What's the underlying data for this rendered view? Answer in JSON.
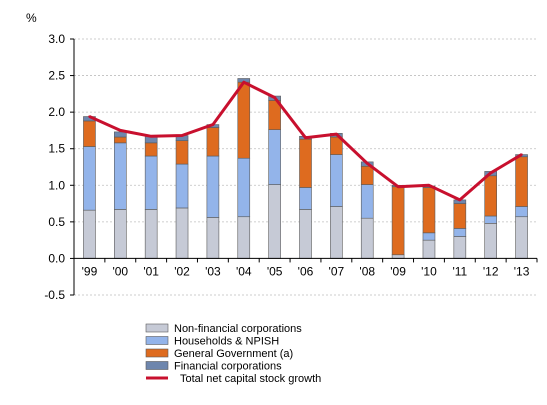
{
  "chart_data": {
    "type": "bar",
    "stacked": true,
    "unit_label": "%",
    "categories": [
      "'99",
      "'00",
      "'01",
      "'02",
      "'03",
      "'04",
      "'05",
      "'06",
      "'07",
      "'08",
      "'09",
      "'10",
      "'11",
      "'12",
      "'13"
    ],
    "ylim": [
      -0.5,
      3.0
    ],
    "yticks": [
      "-0.5",
      "0.0",
      "0.5",
      "1.0",
      "1.5",
      "2.0",
      "2.5",
      "3.0"
    ],
    "grid": true,
    "legend_position": "bottom",
    "series": [
      {
        "name": "Non-financial corporations",
        "color": "#c6cad6",
        "values": [
          0.66,
          0.67,
          0.67,
          0.69,
          0.56,
          0.57,
          1.01,
          0.67,
          0.71,
          0.55,
          0.05,
          0.25,
          0.3,
          0.48,
          0.57
        ]
      },
      {
        "name": "Households & NPISH",
        "color": "#93b4ea",
        "values": [
          0.87,
          0.91,
          0.73,
          0.6,
          0.84,
          0.8,
          0.75,
          0.3,
          0.71,
          0.46,
          0.0,
          0.1,
          0.11,
          0.1,
          0.14
        ]
      },
      {
        "name": "General Government (a)",
        "color": "#de6b1f",
        "values": [
          0.35,
          0.08,
          0.18,
          0.32,
          0.39,
          1.04,
          0.4,
          0.66,
          0.24,
          0.25,
          0.93,
          0.62,
          0.34,
          0.55,
          0.68
        ]
      },
      {
        "name": "Financial corporations",
        "color": "#6e86ad",
        "values": [
          0.06,
          0.07,
          0.09,
          0.07,
          0.04,
          0.05,
          0.06,
          0.04,
          0.05,
          0.06,
          0.02,
          0.02,
          0.05,
          0.06,
          0.03
        ]
      }
    ],
    "line": {
      "name": "Total net capital stock growth",
      "color": "#c8102e",
      "values": [
        1.94,
        1.75,
        1.67,
        1.68,
        1.83,
        2.41,
        2.2,
        1.65,
        1.7,
        1.3,
        0.98,
        1.0,
        0.8,
        1.17,
        1.42
      ]
    }
  }
}
